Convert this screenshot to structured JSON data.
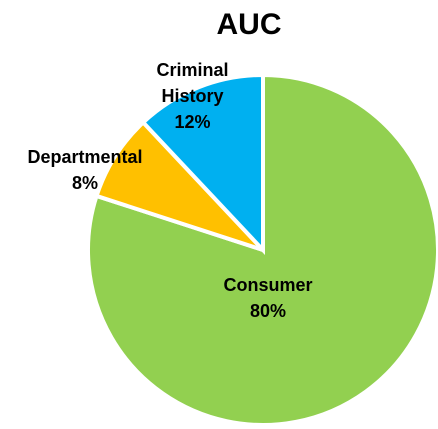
{
  "chart_data": {
    "type": "pie",
    "title": "AUC",
    "categories": [
      "Consumer",
      "Departmental",
      "Criminal History"
    ],
    "values": [
      80,
      8,
      12
    ],
    "value_labels": [
      "80%",
      "8%",
      "12%"
    ],
    "colors": [
      "#92d050",
      "#ffc000",
      "#00b0f0"
    ]
  }
}
